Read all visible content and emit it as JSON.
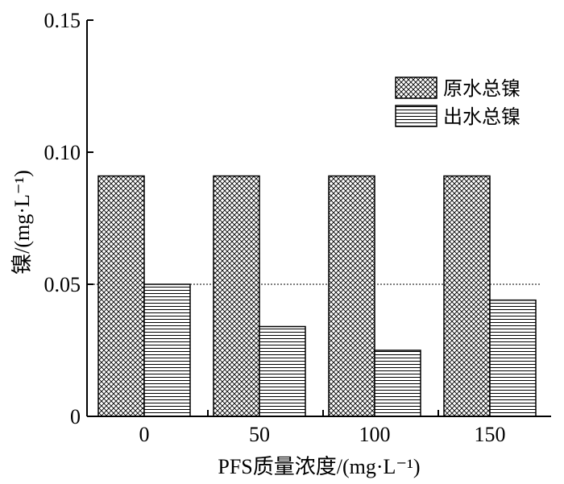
{
  "chart_data": {
    "type": "bar",
    "title": "",
    "xlabel": "PFS质量浓度/(mg·L⁻¹)",
    "ylabel": "镍/(mg·L⁻¹)",
    "categories": [
      "0",
      "50",
      "100",
      "150"
    ],
    "series": [
      {
        "name": "原水总镍",
        "values": [
          0.091,
          0.091,
          0.091,
          0.091
        ],
        "pattern": "crosshatch"
      },
      {
        "name": "出水总镍",
        "values": [
          0.05,
          0.034,
          0.025,
          0.044
        ],
        "pattern": "horizontal-lines"
      }
    ],
    "ylim": [
      0,
      0.15
    ],
    "yticks": [
      "0",
      "0.05",
      "0.10",
      "0.15"
    ],
    "reference_line": {
      "value": 0.05,
      "style": "dotted"
    },
    "legend_position": "top-right",
    "grid": false
  }
}
